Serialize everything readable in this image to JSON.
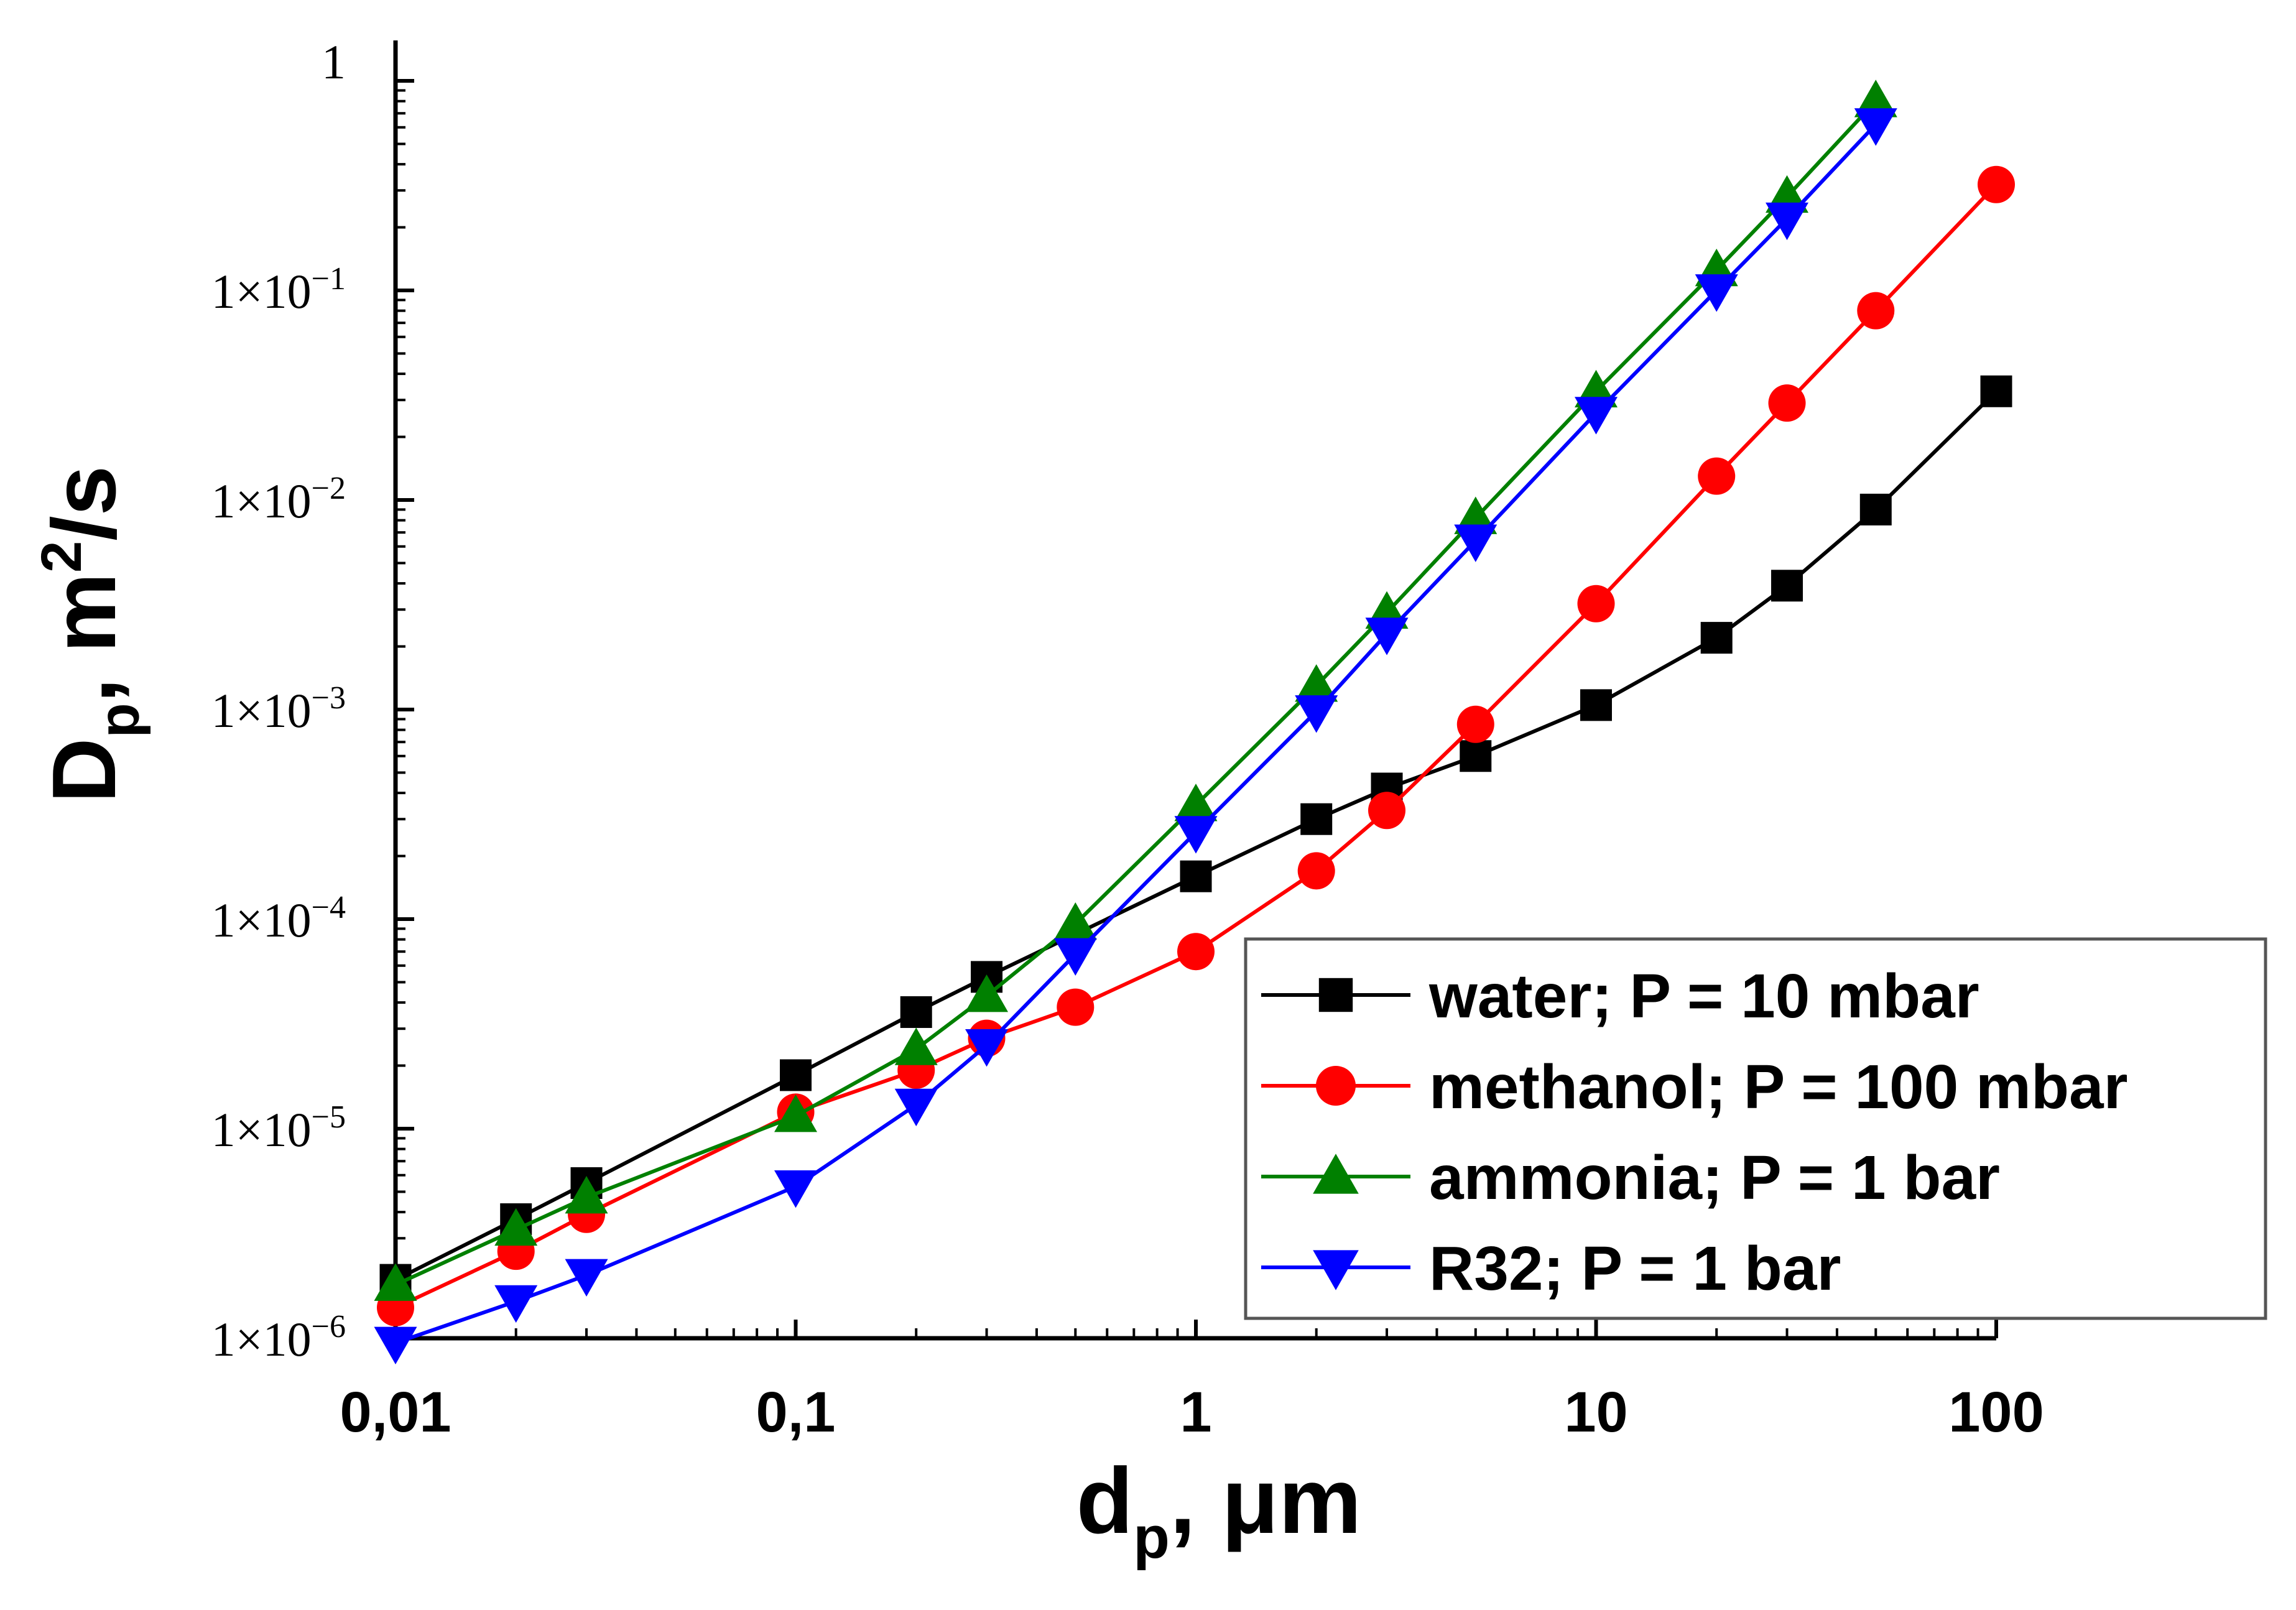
{
  "chart_data": {
    "type": "line",
    "xscale": "log",
    "yscale": "log",
    "xlabel": {
      "main": "d",
      "sub": "p",
      "unit": ", μm"
    },
    "ylabel": {
      "main": "D",
      "sub": "p",
      "mid": ", m",
      "sup": "2",
      "end": "/s"
    },
    "xlim": [
      0.01,
      100
    ],
    "ylim": [
      1e-06,
      1
    ],
    "xticks": [
      {
        "value": 0.01,
        "label": "0,01"
      },
      {
        "value": 0.1,
        "label": "0,1"
      },
      {
        "value": 1,
        "label": "1"
      },
      {
        "value": 10,
        "label": "10"
      },
      {
        "value": 100,
        "label": "100"
      }
    ],
    "yticks": [
      {
        "value": 1,
        "base": "1",
        "exp": ""
      },
      {
        "value": 0.1,
        "base": "1×10",
        "exp": "−1"
      },
      {
        "value": 0.01,
        "base": "1×10",
        "exp": "−2"
      },
      {
        "value": 0.001,
        "base": "1×10",
        "exp": "−3"
      },
      {
        "value": 0.0001,
        "base": "1×10",
        "exp": "−4"
      },
      {
        "value": 1e-05,
        "base": "1×10",
        "exp": "−5"
      },
      {
        "value": 1e-06,
        "base": "1×10",
        "exp": "−6"
      }
    ],
    "series": [
      {
        "name": "water; P = 10 mbar",
        "color": "#000000",
        "marker": "square",
        "x": [
          0.01,
          0.02,
          0.03,
          0.1,
          0.2,
          0.3,
          1,
          2,
          3,
          5,
          10,
          20,
          30,
          50,
          100
        ],
        "y": [
          1.9e-06,
          3.7e-06,
          5.5e-06,
          1.8e-05,
          3.6e-05,
          5.3e-05,
          0.00016,
          0.0003,
          0.00042,
          0.0006,
          0.00105,
          0.0022,
          0.0039,
          0.009,
          0.033
        ]
      },
      {
        "name": "methanol; P = 100 mbar",
        "color": "#ff0000",
        "marker": "circle",
        "x": [
          0.01,
          0.02,
          0.03,
          0.1,
          0.2,
          0.3,
          0.5,
          1,
          2,
          3,
          5,
          10,
          20,
          30,
          50,
          100
        ],
        "y": [
          1.4e-06,
          2.6e-06,
          3.9e-06,
          1.2e-05,
          1.9e-05,
          2.7e-05,
          3.8e-05,
          7e-05,
          0.00017,
          0.00033,
          0.00085,
          0.0032,
          0.013,
          0.029,
          0.08,
          0.32
        ]
      },
      {
        "name": "ammonia; P = 1 bar",
        "color": "#008000",
        "marker": "triangle-up",
        "x": [
          0.01,
          0.02,
          0.03,
          0.1,
          0.2,
          0.3,
          0.5,
          1,
          2,
          3,
          5,
          10,
          20,
          30,
          50
        ],
        "y": [
          1.8e-06,
          3.3e-06,
          4.7e-06,
          1.15e-05,
          2.4e-05,
          4.3e-05,
          9.5e-05,
          0.00035,
          0.0013,
          0.0029,
          0.0082,
          0.033,
          0.125,
          0.28,
          0.8
        ]
      },
      {
        "name": "R32; P = 1 bar",
        "color": "#0000ff",
        "marker": "triangle-down",
        "x": [
          0.01,
          0.02,
          0.03,
          0.1,
          0.2,
          0.3,
          0.5,
          1,
          2,
          3,
          5,
          10,
          20,
          30,
          50
        ],
        "y": [
          9.5e-07,
          1.5e-06,
          2e-06,
          5.3e-06,
          1.3e-05,
          2.5e-05,
          6.8e-05,
          0.00026,
          0.00098,
          0.0023,
          0.0064,
          0.026,
          0.1,
          0.22,
          0.62
        ]
      }
    ],
    "legend": {
      "position": "bottom-right"
    }
  }
}
